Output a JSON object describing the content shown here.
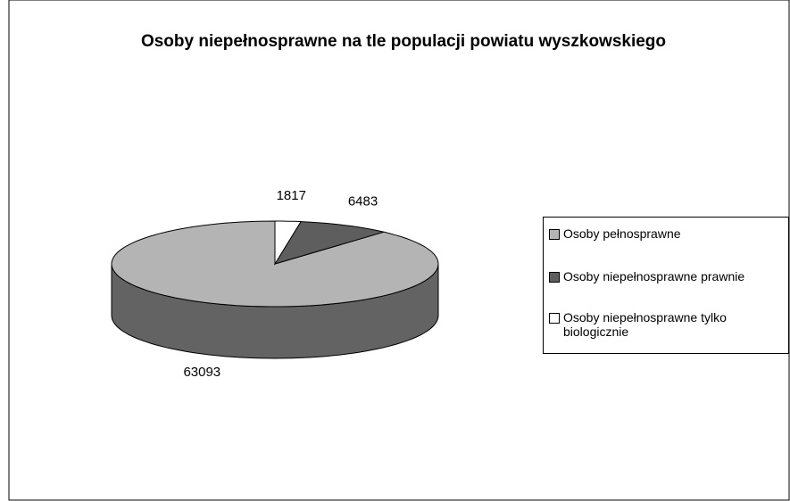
{
  "chart_data": {
    "type": "pie3d",
    "title": "Osoby niepełnosprawne na tle populacji powiatu wyszkowskiego",
    "categories": [
      "Osoby pełnosprawne",
      "Osoby niepełnosprawne prawnie",
      "Osoby niepełnosprawne tylko biologicznie"
    ],
    "values": [
      63093,
      6483,
      1817
    ],
    "colors": [
      "#b4b4b4",
      "#5e5e5e",
      "#ffffff"
    ],
    "legend": "right"
  }
}
